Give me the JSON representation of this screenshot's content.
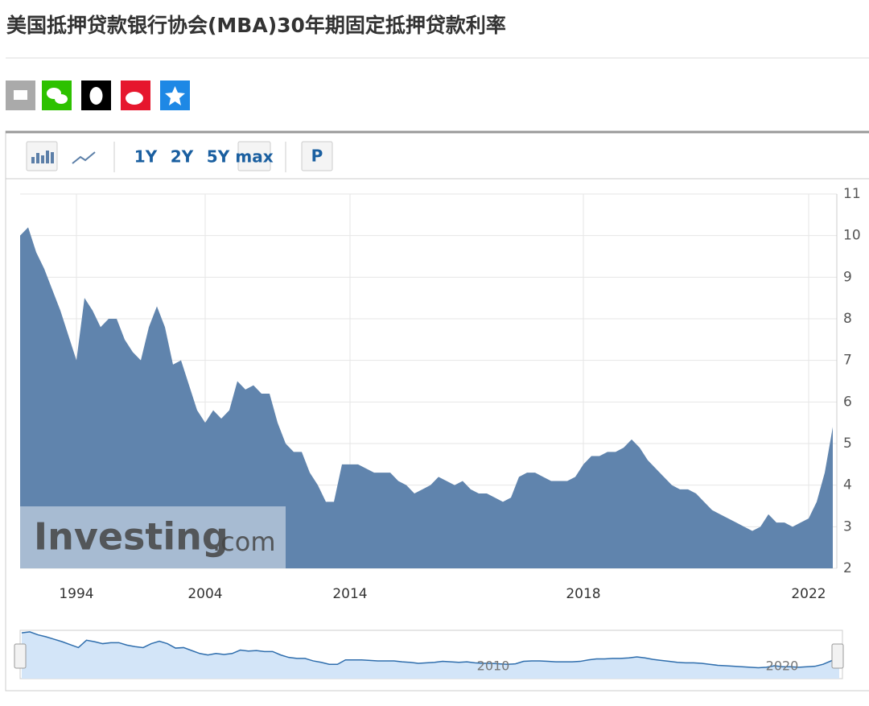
{
  "header": {
    "title": "美国抵押贷款银行协会(MBA)30年期固定抵押贷款利率"
  },
  "toolbar": {
    "ranges": [
      "1Y",
      "2Y",
      "5Y",
      "max"
    ],
    "print": "P"
  },
  "watermark": {
    "brand": "Investing",
    "suffix": ".com"
  },
  "navigator": {
    "labels": [
      "2010",
      "2020"
    ]
  },
  "chart_data": {
    "type": "area",
    "color": "#6084ad",
    "grid": true,
    "categories": [
      null,
      null,
      null,
      null,
      null,
      null,
      null,
      "1994",
      null,
      null,
      null,
      null,
      null,
      null,
      null,
      null,
      null,
      null,
      null,
      null,
      null,
      null,
      null,
      "2004",
      null,
      null,
      null,
      null,
      null,
      null,
      null,
      null,
      null,
      null,
      null,
      null,
      null,
      null,
      null,
      null,
      null,
      "2014",
      null,
      null,
      null,
      null,
      null,
      null,
      null,
      null,
      null,
      null,
      null,
      null,
      null,
      null,
      null,
      null,
      null,
      null,
      null,
      null,
      null,
      null,
      null,
      null,
      null,
      null,
      null,
      null,
      "2018",
      null,
      null,
      null,
      null,
      null,
      null,
      null,
      null,
      null,
      null,
      null,
      null,
      null,
      null,
      null,
      null,
      null,
      null,
      null,
      null,
      null,
      null,
      null,
      null,
      null,
      null,
      null,
      "2022",
      null,
      null,
      null
    ],
    "values": [
      10.0,
      10.2,
      9.6,
      9.2,
      8.7,
      8.2,
      7.6,
      7.0,
      8.5,
      8.2,
      7.8,
      8.0,
      8.0,
      7.5,
      7.2,
      7.0,
      7.8,
      8.3,
      7.8,
      6.9,
      7.0,
      6.4,
      5.8,
      5.5,
      5.8,
      5.6,
      5.8,
      6.5,
      6.3,
      6.4,
      6.2,
      6.2,
      5.5,
      5.0,
      4.8,
      4.8,
      4.3,
      4.0,
      3.6,
      3.6,
      4.5,
      4.5,
      4.5,
      4.4,
      4.3,
      4.3,
      4.3,
      4.1,
      4.0,
      3.8,
      3.9,
      4.0,
      4.2,
      4.1,
      4.0,
      4.1,
      3.9,
      3.8,
      3.8,
      3.7,
      3.6,
      3.7,
      4.2,
      4.3,
      4.3,
      4.2,
      4.1,
      4.1,
      4.1,
      4.2,
      4.5,
      4.7,
      4.7,
      4.8,
      4.8,
      4.9,
      5.1,
      4.9,
      4.6,
      4.4,
      4.2,
      4.0,
      3.9,
      3.9,
      3.8,
      3.6,
      3.4,
      3.3,
      3.2,
      3.1,
      3.0,
      2.9,
      3.0,
      3.3,
      3.1,
      3.1,
      3.0,
      3.1,
      3.2,
      3.6,
      4.3,
      5.4
    ],
    "ylim": [
      2,
      11
    ],
    "yticks": [
      2,
      3,
      4,
      5,
      6,
      7,
      8,
      9,
      10,
      11
    ]
  }
}
